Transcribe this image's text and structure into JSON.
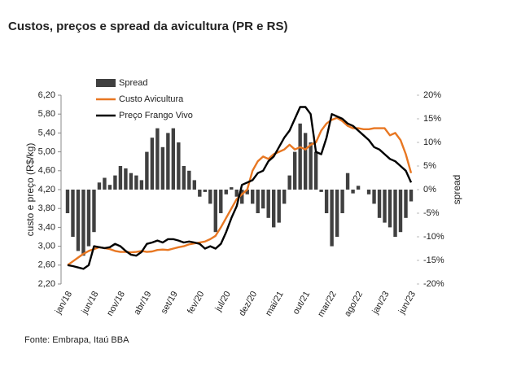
{
  "chart_data": {
    "type": "combo",
    "title": "Custos,  preços e spread da avicultura (PR e RS)",
    "y_label": "custo e preço (R$/kg)",
    "y2_label": "spread",
    "source": "Fonte: Embrapa, Itaú BBA",
    "legend": "top-left",
    "categories": [
      "jan/18",
      null,
      null,
      null,
      null,
      "jun/18",
      null,
      null,
      null,
      null,
      "nov/18",
      null,
      null,
      null,
      null,
      "abr/19",
      null,
      null,
      null,
      null,
      "set/19",
      null,
      null,
      null,
      null,
      "fev/20",
      null,
      null,
      null,
      null,
      "jul/20",
      null,
      null,
      null,
      null,
      "dez/20",
      null,
      null,
      null,
      null,
      "mai/21",
      null,
      null,
      null,
      null,
      "out/21",
      null,
      null,
      null,
      null,
      "mar/22",
      null,
      null,
      null,
      null,
      "ago/22",
      null,
      null,
      null,
      null,
      "jan/23",
      null,
      null,
      null,
      null,
      "jun/23"
    ],
    "ylim": [
      2.2,
      6.2
    ],
    "yticks": [
      {
        "value": 2.2,
        "label": "2,20"
      },
      {
        "value": 2.6,
        "label": "2,60"
      },
      {
        "value": 3.0,
        "label": "3,00"
      },
      {
        "value": 3.4,
        "label": "3,40"
      },
      {
        "value": 3.8,
        "label": "3,80"
      },
      {
        "value": 4.2,
        "label": "4,20"
      },
      {
        "value": 4.6,
        "label": "4,60"
      },
      {
        "value": 5.0,
        "label": "5,00"
      },
      {
        "value": 5.4,
        "label": "5,40"
      },
      {
        "value": 5.8,
        "label": "5,80"
      },
      {
        "value": 6.2,
        "label": "6,20"
      }
    ],
    "y2lim": [
      -20,
      20
    ],
    "y2ticks": [
      {
        "value": -20,
        "label": "-20%"
      },
      {
        "value": -15,
        "label": "-15%"
      },
      {
        "value": -10,
        "label": "-10%"
      },
      {
        "value": -5,
        "label": "-5%"
      },
      {
        "value": 0,
        "label": "0%"
      },
      {
        "value": 5,
        "label": "5%"
      },
      {
        "value": 10,
        "label": "10%"
      },
      {
        "value": 15,
        "label": "15%"
      },
      {
        "value": 20,
        "label": "20%"
      }
    ],
    "series": [
      {
        "name": "Spread",
        "type": "bar",
        "axis": "y2",
        "color": "#404040",
        "values": [
          -5,
          -10,
          -13,
          -14,
          -12,
          -9,
          1.5,
          2.5,
          1,
          3,
          5,
          4.5,
          3.5,
          3,
          2,
          8,
          11,
          13,
          9,
          12,
          13,
          10,
          5,
          4,
          2,
          -1.5,
          -0.5,
          -3,
          -9,
          -5,
          -1,
          0.5,
          -1.5,
          -3,
          -1,
          -3,
          -5,
          -4,
          -6,
          -8,
          -7,
          -3,
          3,
          8,
          14,
          12,
          10,
          8,
          -0.5,
          -5,
          -12,
          -10,
          -5,
          3.5,
          -0.8,
          0.8,
          0,
          -1,
          -3,
          -6,
          -7,
          -8,
          -10,
          -9,
          -6,
          -2.5
        ]
      },
      {
        "name": "Custo Avicultura",
        "type": "line",
        "color": "#e87722",
        "values": [
          2.6,
          2.68,
          2.76,
          2.84,
          2.9,
          2.94,
          2.98,
          2.96,
          2.94,
          2.9,
          2.88,
          2.88,
          2.87,
          2.88,
          2.9,
          2.88,
          2.89,
          2.92,
          2.93,
          2.92,
          2.95,
          2.98,
          3.0,
          3.04,
          3.06,
          3.08,
          3.1,
          3.15,
          3.22,
          3.4,
          3.6,
          3.8,
          4.0,
          4.1,
          4.2,
          4.6,
          4.8,
          4.9,
          4.85,
          4.95,
          5.0,
          5.05,
          5.15,
          5.05,
          5.1,
          5.05,
          5.15,
          5.2,
          5.45,
          5.6,
          5.68,
          5.72,
          5.65,
          5.55,
          5.5,
          5.5,
          5.48,
          5.48,
          5.5,
          5.5,
          5.5,
          5.35,
          5.4,
          5.25,
          4.95,
          4.55
        ]
      },
      {
        "name": "Preço Frango Vivo",
        "type": "line",
        "color": "#000000",
        "values": [
          2.6,
          2.58,
          2.55,
          2.52,
          2.6,
          3.0,
          2.98,
          2.96,
          2.98,
          3.05,
          3.0,
          2.9,
          2.82,
          2.8,
          2.88,
          3.05,
          3.08,
          3.12,
          3.08,
          3.15,
          3.15,
          3.12,
          3.08,
          3.1,
          3.08,
          3.05,
          2.95,
          3.0,
          2.95,
          3.05,
          3.3,
          3.6,
          3.85,
          4.3,
          4.35,
          4.4,
          4.55,
          4.6,
          4.8,
          4.9,
          5.1,
          5.3,
          5.45,
          5.7,
          5.95,
          5.95,
          5.8,
          5.0,
          4.95,
          5.3,
          5.8,
          5.75,
          5.7,
          5.6,
          5.55,
          5.45,
          5.35,
          5.25,
          5.1,
          5.05,
          4.95,
          4.85,
          4.8,
          4.7,
          4.6,
          4.35
        ]
      }
    ]
  }
}
